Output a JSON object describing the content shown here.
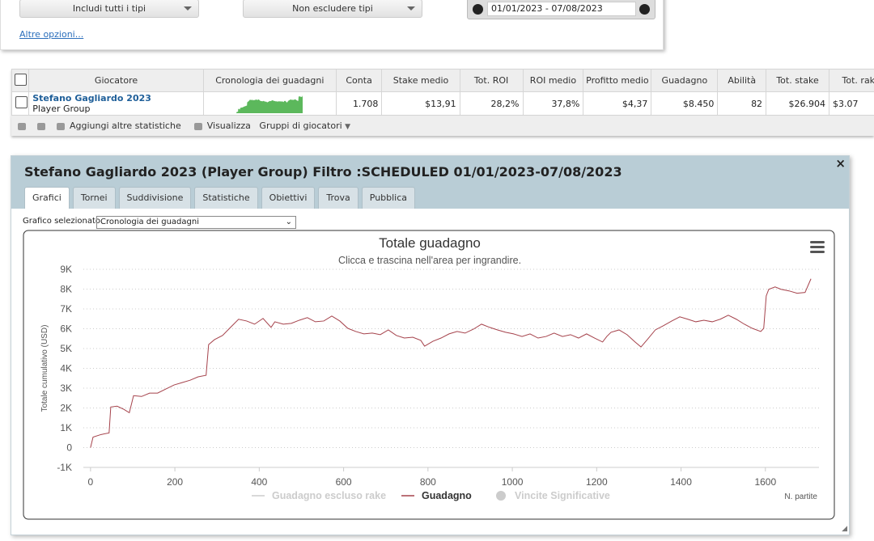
{
  "filters": {
    "include": "Includi tutti i tipi",
    "exclude": "Non escludere tipi",
    "date_range": "01/01/2023 - 07/08/2023",
    "more": "Altre opzioni..."
  },
  "table": {
    "headers": [
      "Giocatore",
      "Cronologia dei guadagni",
      "Conta",
      "Stake medio",
      "Tot. ROI",
      "ROI medio",
      "Profitto medio",
      "Guadagno",
      "Abilità",
      "Tot. stake",
      "Tot. rake"
    ],
    "rows": [
      {
        "player": "Stefano Gagliardo 2023",
        "group": "Player Group",
        "cells": [
          "1.708",
          "$13,91",
          "28,2%",
          "37,8%",
          "$4,37",
          "$8.450",
          "82",
          "$26.904",
          "$3.07"
        ]
      }
    ],
    "sparkline_color": "#5cb85c"
  },
  "toolbar": {
    "add_stats": "Aggiungi altre statistiche",
    "view": "Visualizza",
    "groups": "Gruppi di giocatori"
  },
  "panel": {
    "title": "Stefano Gagliardo 2023 (Player Group) Filtro :SCHEDULED 01/01/2023-07/08/2023",
    "tabs": [
      "Grafici",
      "Tornei",
      "Suddivisione",
      "Statistiche",
      "Obiettivi",
      "Trova",
      "Pubblica"
    ],
    "active_tab": 0,
    "chart_select_label": "Grafico selezionato",
    "chart_select": "Cronologia dei guadagni"
  },
  "chart": {
    "type": "line",
    "title": "Totale guadagno",
    "subtitle": "Clicca e trascina nell'area per ingrandire.",
    "y_label": "Totale cumulativo (USD)",
    "x_label": "N. partite",
    "x": [
      0,
      6,
      25,
      44,
      48,
      63,
      79,
      92,
      102,
      121,
      140,
      159,
      178,
      198,
      217,
      236,
      255,
      274,
      280,
      294,
      313,
      332,
      351,
      370,
      389,
      409,
      428,
      437,
      457,
      476,
      495,
      514,
      533,
      553,
      572,
      591,
      610,
      629,
      648,
      668,
      687,
      706,
      725,
      744,
      764,
      783,
      792,
      812,
      831,
      850,
      869,
      888,
      908,
      927,
      946,
      965,
      984,
      1003,
      1023,
      1042,
      1061,
      1080,
      1099,
      1119,
      1138,
      1157,
      1176,
      1195,
      1214,
      1224,
      1234,
      1253,
      1272,
      1291,
      1305,
      1320,
      1339,
      1358,
      1378,
      1397,
      1416,
      1435,
      1454,
      1474,
      1493,
      1512,
      1531,
      1550,
      1569,
      1589,
      1596,
      1602,
      1608,
      1623,
      1637,
      1656,
      1675,
      1694,
      1708
    ],
    "series": [
      {
        "name": "Guadagno",
        "color": "#a5424b",
        "values": [
          0,
          530,
          660,
          740,
          2050,
          2090,
          1930,
          1760,
          2620,
          2580,
          2750,
          2750,
          2950,
          3160,
          3280,
          3400,
          3570,
          3650,
          5200,
          5450,
          5660,
          6070,
          6480,
          6390,
          6230,
          6520,
          6070,
          6350,
          6230,
          6270,
          6430,
          6560,
          6350,
          6390,
          6640,
          6390,
          6020,
          5860,
          5740,
          5780,
          5700,
          5940,
          5660,
          5530,
          5570,
          5410,
          5120,
          5370,
          5530,
          5740,
          5860,
          5780,
          5980,
          6230,
          6070,
          5940,
          5820,
          5740,
          5610,
          5740,
          5530,
          5610,
          5780,
          5610,
          5700,
          5530,
          5740,
          5530,
          5330,
          5610,
          5820,
          5940,
          5700,
          5330,
          5080,
          5450,
          5940,
          6150,
          6390,
          6600,
          6480,
          6350,
          6430,
          6350,
          6480,
          6680,
          6480,
          6230,
          6020,
          5860,
          6020,
          7660,
          7990,
          8110,
          7990,
          7910,
          7790,
          7830,
          8520
        ]
      }
    ],
    "hidden_series": [
      {
        "name": "Guadagno escluso rake",
        "color": "#cccccc",
        "symbol": "line"
      },
      {
        "name": "Vincite Significative",
        "color": "#cccccc",
        "symbol": "circle"
      }
    ],
    "xlim": [
      -17,
      1727
    ],
    "xticks": [
      0,
      200,
      400,
      600,
      800,
      1000,
      1200,
      1400,
      1600
    ],
    "ylim": [
      -1000,
      9000
    ],
    "yticks": [
      {
        "value": -1000,
        "label": "-1K"
      },
      0,
      {
        "value": 1000,
        "label": "1K"
      },
      {
        "value": 2000,
        "label": "2K"
      },
      {
        "value": 3000,
        "label": "3K"
      },
      {
        "value": 4000,
        "label": "4K"
      },
      {
        "value": 5000,
        "label": "5K"
      },
      {
        "value": 6000,
        "label": "6K"
      },
      {
        "value": 7000,
        "label": "7K"
      },
      {
        "value": 8000,
        "label": "8K"
      },
      {
        "value": 9000,
        "label": "9K"
      }
    ],
    "grid": true
  }
}
